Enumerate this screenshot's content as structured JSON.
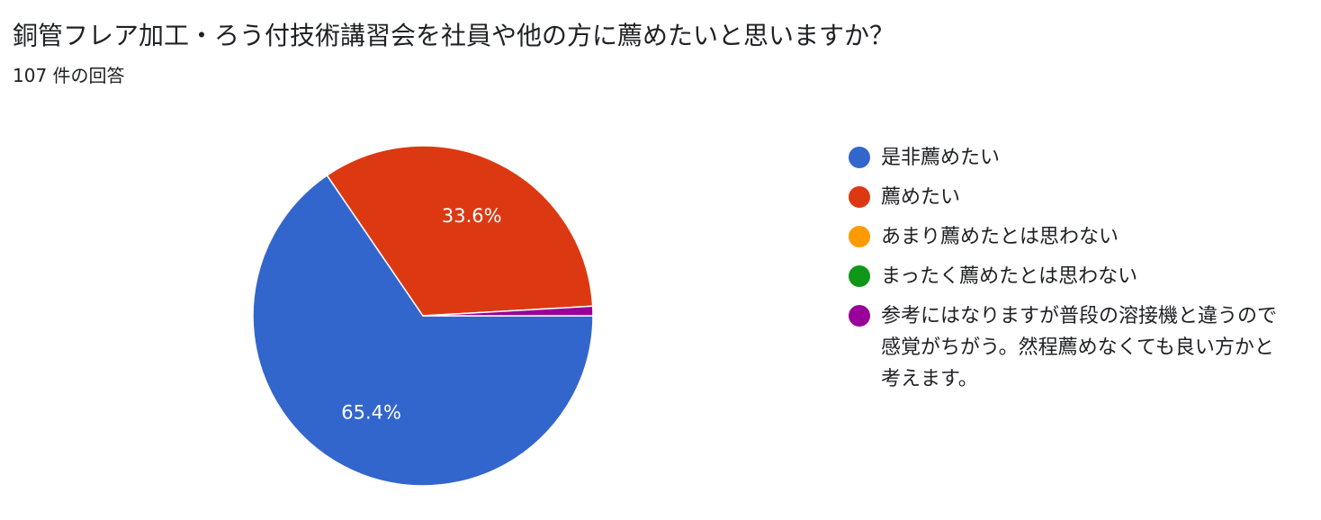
{
  "chart_data": {
    "type": "pie",
    "title": "銅管フレア加工・ろう付技術講習会を社員や他の方に薦めたいと思いますか？",
    "subtitle": "107 件の回答",
    "categories": [
      "是非薦めたい",
      "薦めたい",
      "あまり薦めたとは思わない",
      "まったく薦めたとは思わない",
      "参考にはなりますが普段の溶接機と違うので感覚がちがう。然程薦めなくても良い方かと考えます。"
    ],
    "values": [
      65.4,
      33.6,
      0,
      0,
      0.9
    ],
    "value_labels": [
      "65.4%",
      "33.6%",
      null,
      null,
      null
    ],
    "colors": [
      "#3366cc",
      "#dc3912",
      "#ff9900",
      "#109618",
      "#990099"
    ]
  }
}
